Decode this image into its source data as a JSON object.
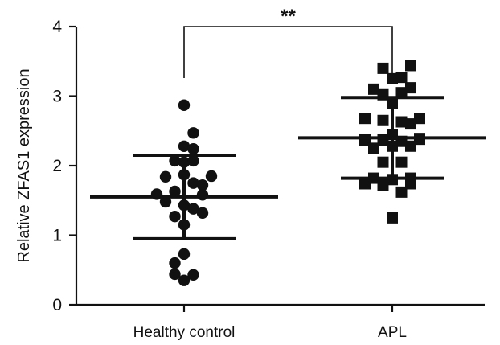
{
  "chart_data": {
    "type": "scatter",
    "subtype": "dot-plot-with-mean-sd",
    "title": "",
    "xlabel": "",
    "ylabel": "Relative ZFAS1 expression",
    "ylim": [
      0,
      4
    ],
    "yticks": [
      "0",
      "1",
      "2",
      "3",
      "4"
    ],
    "categories": [
      "Healthy control",
      "APL"
    ],
    "grid": false,
    "annotations": [
      {
        "text": "**",
        "between": [
          "Healthy control",
          "APL"
        ]
      }
    ],
    "series": [
      {
        "category": "Healthy control",
        "marker": "circle",
        "mean": 1.55,
        "sd_upper": 2.15,
        "sd_lower": 0.95,
        "values": [
          {
            "x": 0.0,
            "y": 2.87
          },
          {
            "x": 0.23,
            "y": 2.47
          },
          {
            "x": 0.0,
            "y": 2.28
          },
          {
            "x": 0.23,
            "y": 2.24
          },
          {
            "x": -0.23,
            "y": 2.07
          },
          {
            "x": 0.0,
            "y": 2.05
          },
          {
            "x": 0.23,
            "y": 2.07
          },
          {
            "x": -0.46,
            "y": 1.84
          },
          {
            "x": 0.0,
            "y": 1.87
          },
          {
            "x": 0.68,
            "y": 1.85
          },
          {
            "x": 0.23,
            "y": 1.75
          },
          {
            "x": 0.46,
            "y": 1.72
          },
          {
            "x": -0.68,
            "y": 1.59
          },
          {
            "x": -0.23,
            "y": 1.63
          },
          {
            "x": 0.46,
            "y": 1.58
          },
          {
            "x": -0.46,
            "y": 1.48
          },
          {
            "x": 0.0,
            "y": 1.43
          },
          {
            "x": 0.23,
            "y": 1.38
          },
          {
            "x": -0.23,
            "y": 1.27
          },
          {
            "x": 0.46,
            "y": 1.32
          },
          {
            "x": 0.0,
            "y": 1.15
          },
          {
            "x": 0.0,
            "y": 0.73
          },
          {
            "x": -0.23,
            "y": 0.6
          },
          {
            "x": -0.23,
            "y": 0.44
          },
          {
            "x": 0.23,
            "y": 0.43
          },
          {
            "x": 0.0,
            "y": 0.35
          }
        ]
      },
      {
        "category": "APL",
        "marker": "square",
        "mean": 2.4,
        "sd_upper": 2.98,
        "sd_lower": 1.82,
        "values": [
          {
            "x": -0.23,
            "y": 3.4
          },
          {
            "x": 0.46,
            "y": 3.44
          },
          {
            "x": 0.23,
            "y": 3.27
          },
          {
            "x": 0.0,
            "y": 3.25
          },
          {
            "x": -0.46,
            "y": 3.1
          },
          {
            "x": -0.23,
            "y": 3.02
          },
          {
            "x": 0.23,
            "y": 3.05
          },
          {
            "x": 0.46,
            "y": 3.12
          },
          {
            "x": 0.0,
            "y": 2.9
          },
          {
            "x": -0.68,
            "y": 2.68
          },
          {
            "x": -0.23,
            "y": 2.65
          },
          {
            "x": 0.23,
            "y": 2.63
          },
          {
            "x": 0.68,
            "y": 2.68
          },
          {
            "x": 0.46,
            "y": 2.6
          },
          {
            "x": 0.0,
            "y": 2.45
          },
          {
            "x": -0.68,
            "y": 2.37
          },
          {
            "x": -0.23,
            "y": 2.37
          },
          {
            "x": 0.23,
            "y": 2.35
          },
          {
            "x": 0.68,
            "y": 2.38
          },
          {
            "x": -0.46,
            "y": 2.25
          },
          {
            "x": 0.0,
            "y": 2.28
          },
          {
            "x": 0.46,
            "y": 2.28
          },
          {
            "x": -0.23,
            "y": 2.05
          },
          {
            "x": 0.23,
            "y": 2.05
          },
          {
            "x": -0.46,
            "y": 1.82
          },
          {
            "x": 0.0,
            "y": 1.8
          },
          {
            "x": 0.46,
            "y": 1.82
          },
          {
            "x": -0.68,
            "y": 1.74
          },
          {
            "x": -0.23,
            "y": 1.72
          },
          {
            "x": 0.23,
            "y": 1.62
          },
          {
            "x": 0.46,
            "y": 1.74
          },
          {
            "x": 0.0,
            "y": 1.25
          }
        ]
      }
    ]
  }
}
